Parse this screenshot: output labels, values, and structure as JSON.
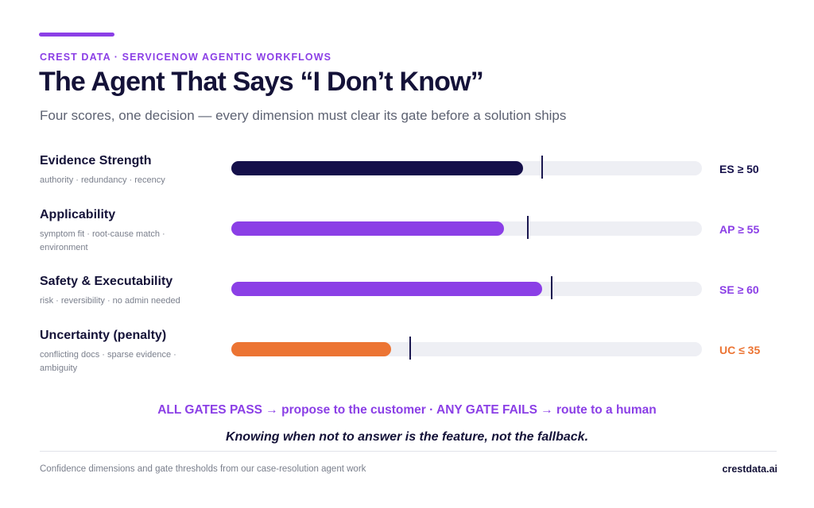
{
  "header": {
    "eyebrow": "CREST DATA · SERVICENOW AGENTIC WORKFLOWS",
    "title": "The Agent That Says “I Don’t Know”",
    "subtitle": "Four scores, one decision — every dimension must clear its gate before a solution ships"
  },
  "chart_data": {
    "type": "bar",
    "orientation": "horizontal",
    "xlim": [
      0,
      100
    ],
    "categories": [
      "Evidence Strength",
      "Applicability",
      "Safety & Executability",
      "Uncertainty (penalty)"
    ],
    "descriptions": [
      "authority · redundancy · recency",
      "symptom fit · root-cause match · environment",
      "risk · reversibility · no admin needed",
      "conflicting docs · sparse evidence · ambiguity"
    ],
    "values": [
      62,
      58,
      66,
      34
    ],
    "thresholds": [
      66,
      63,
      68,
      38
    ],
    "gate_labels": [
      "ES ≥ 50",
      "AP ≥ 55",
      "SE ≥ 60",
      "UC ≤ 35"
    ],
    "colors": [
      "#15104a",
      "#8b3fe6",
      "#8b3fe6",
      "#ec7433"
    ],
    "gate_label_colors": [
      "#15104a",
      "#8b3fe6",
      "#8b3fe6",
      "#ec7433"
    ],
    "grid": false,
    "legend": "none"
  },
  "decision_rule": "ALL GATES PASS → propose to the customer · ANY GATE FAILS → route to a human",
  "tagline": "Knowing when not to answer is the feature, not the fallback.",
  "footer": {
    "note": "Confidence dimensions and gate thresholds from our case-resolution agent work",
    "brand": "crestdata.ai"
  }
}
